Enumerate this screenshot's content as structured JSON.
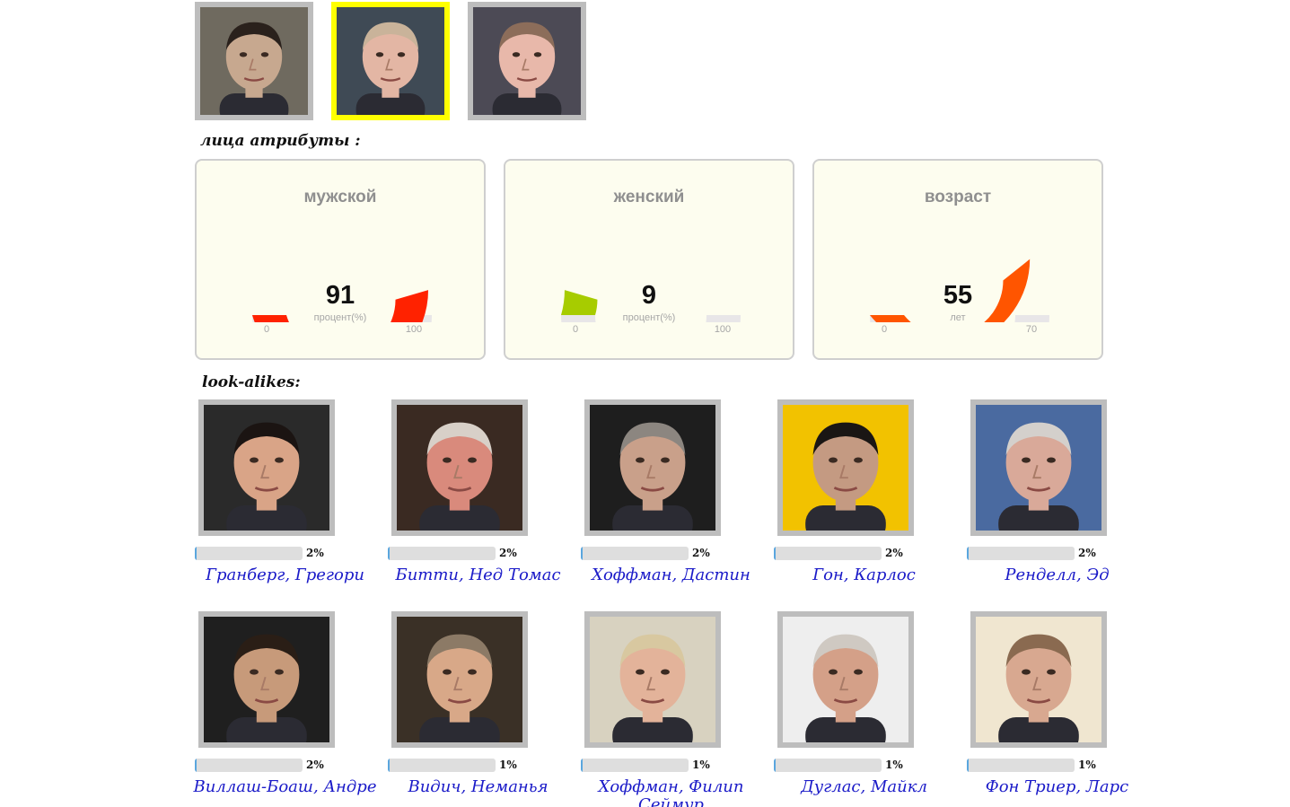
{
  "faces": [
    {
      "selected": false,
      "skin": "#c7a88f",
      "hair": "#2a211c",
      "bg": "#6f6a5f"
    },
    {
      "selected": true,
      "skin": "#e3b6a4",
      "hair": "#c9b39a",
      "bg": "#3f4a55"
    },
    {
      "selected": false,
      "skin": "#e8b8aa",
      "hair": "#8c6d5a",
      "bg": "#4c4a55"
    }
  ],
  "attributes_heading": "лица атрибуты :",
  "gauges": [
    {
      "title": "мужской",
      "value": 91,
      "display": "91",
      "unit": "процент(%)",
      "min": 0,
      "max": 100,
      "min_label": "0",
      "max_label": "100",
      "color": "#ff2200"
    },
    {
      "title": "женский",
      "value": 9,
      "display": "9",
      "unit": "процент(%)",
      "min": 0,
      "max": 100,
      "min_label": "0",
      "max_label": "100",
      "color": "#a7cc00"
    },
    {
      "title": "возраст",
      "value": 55,
      "display": "55",
      "unit": "лет",
      "min": 0,
      "max": 70,
      "min_label": "0",
      "max_label": "70",
      "color": "#ff5500"
    }
  ],
  "lookalikes_heading": "look-alikes:",
  "lookalikes": [
    {
      "name": "Гранберг, Грегори",
      "percent": 2,
      "percent_label": "2%",
      "skin": "#d9a487",
      "hair": "#1b1412",
      "bg": "#2a2a2a"
    },
    {
      "name": "Битти, Нед Томас",
      "percent": 2,
      "percent_label": "2%",
      "skin": "#d98a7c",
      "hair": "#d8d0c8",
      "bg": "#3a2a22"
    },
    {
      "name": "Хоффман, Дастин",
      "percent": 2,
      "percent_label": "2%",
      "skin": "#c9a08a",
      "hair": "#8c8680",
      "bg": "#1e1e1e"
    },
    {
      "name": "Гон, Карлос",
      "percent": 2,
      "percent_label": "2%",
      "skin": "#c49a82",
      "hair": "#1a1614",
      "bg": "#f2c200"
    },
    {
      "name": "Ренделл, Эд",
      "percent": 2,
      "percent_label": "2%",
      "skin": "#d9a999",
      "hair": "#d4d0cc",
      "bg": "#4a6aa0"
    },
    {
      "name": "Виллаш-Боаш, Андре",
      "percent": 2,
      "percent_label": "2%",
      "skin": "#c79a7a",
      "hair": "#2a1e16",
      "bg": "#1f1f1f"
    },
    {
      "name": "Видич, Неманья",
      "percent": 1,
      "percent_label": "1%",
      "skin": "#d8a888",
      "hair": "#8c7a66",
      "bg": "#3a3026"
    },
    {
      "name": "Хоффман, Филип Сеймур",
      "percent": 1,
      "percent_label": "1%",
      "skin": "#e3b39a",
      "hair": "#d8c8a0",
      "bg": "#d8d2c0"
    },
    {
      "name": "Дуглас, Майкл",
      "percent": 1,
      "percent_label": "1%",
      "skin": "#d4a088",
      "hair": "#cfc9c2",
      "bg": "#eeeeee"
    },
    {
      "name": "Фон Триер, Ларс",
      "percent": 1,
      "percent_label": "1%",
      "skin": "#d8a890",
      "hair": "#8a6a50",
      "bg": "#f0e6d0"
    }
  ]
}
